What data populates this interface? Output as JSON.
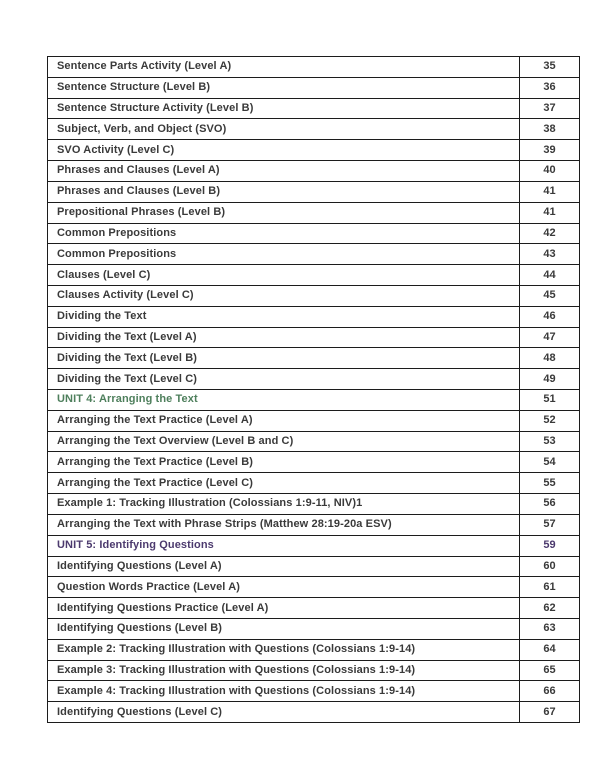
{
  "toc": {
    "colors": {
      "text": "#3a3a3a",
      "border": "#1c1c1c",
      "unit_green": "#4e7f5c",
      "unit_purple": "#4c3a6e"
    },
    "rows": [
      {
        "title": "Sentence Parts Activity (Level A)",
        "page": "35",
        "style": "default"
      },
      {
        "title": "Sentence Structure (Level B)",
        "page": "36",
        "style": "default"
      },
      {
        "title": "Sentence Structure Activity (Level B)",
        "page": "37",
        "style": "default"
      },
      {
        "title": "Subject, Verb, and Object (SVO)",
        "page": "38",
        "style": "default"
      },
      {
        "title": "SVO Activity (Level C)",
        "page": "39",
        "style": "default"
      },
      {
        "title": "Phrases and Clauses (Level A)",
        "page": "40",
        "style": "default"
      },
      {
        "title": "Phrases and Clauses (Level B)",
        "page": "41",
        "style": "default"
      },
      {
        "title": "Prepositional Phrases (Level B)",
        "page": "41",
        "style": "default"
      },
      {
        "title": "Common Prepositions",
        "page": "42",
        "style": "default"
      },
      {
        "title": "Common Prepositions",
        "page": "43",
        "style": "default"
      },
      {
        "title": "Clauses (Level C)",
        "page": "44",
        "style": "default"
      },
      {
        "title": "Clauses Activity (Level C)",
        "page": "45",
        "style": "default"
      },
      {
        "title": "Dividing the Text",
        "page": "46",
        "style": "default"
      },
      {
        "title": "Dividing the Text (Level A)",
        "page": "47",
        "style": "default"
      },
      {
        "title": "Dividing the Text (Level B)",
        "page": "48",
        "style": "default"
      },
      {
        "title": "Dividing the Text (Level C)",
        "page": "49",
        "style": "default"
      },
      {
        "title": "UNIT 4: Arranging the Text",
        "page": "51",
        "style": "unit-green"
      },
      {
        "title": "Arranging the Text Practice (Level A)",
        "page": "52",
        "style": "default"
      },
      {
        "title": "Arranging the Text Overview (Level B and C)",
        "page": "53",
        "style": "default"
      },
      {
        "title": "Arranging the Text Practice (Level B)",
        "page": "54",
        "style": "default"
      },
      {
        "title": "Arranging the Text Practice (Level C)",
        "page": "55",
        "style": "default"
      },
      {
        "title": "Example 1: Tracking Illustration (Colossians 1:9-11, NIV)1",
        "page": "56",
        "style": "default"
      },
      {
        "title": "Arranging the Text with Phrase Strips (Matthew 28:19-20a ESV)",
        "page": "57",
        "style": "default"
      },
      {
        "title": "UNIT 5: Identifying Questions",
        "page": "59",
        "style": "unit-purple"
      },
      {
        "title": "Identifying Questions (Level A)",
        "page": "60",
        "style": "default"
      },
      {
        "title": "Question Words Practice (Level A)",
        "page": "61",
        "style": "default"
      },
      {
        "title": "Identifying Questions Practice (Level A)",
        "page": "62",
        "style": "default"
      },
      {
        "title": "Identifying Questions (Level B)",
        "page": "63",
        "style": "default"
      },
      {
        "title": "Example 2: Tracking Illustration with Questions (Colossians 1:9-14)",
        "page": "64",
        "style": "default"
      },
      {
        "title": "Example 3: Tracking Illustration with Questions (Colossians 1:9-14)",
        "page": "65",
        "style": "default"
      },
      {
        "title": "Example 4: Tracking Illustration with Questions (Colossians 1:9-14)",
        "page": "66",
        "style": "default"
      },
      {
        "title": "Identifying Questions (Level C)",
        "page": "67",
        "style": "default"
      }
    ]
  }
}
